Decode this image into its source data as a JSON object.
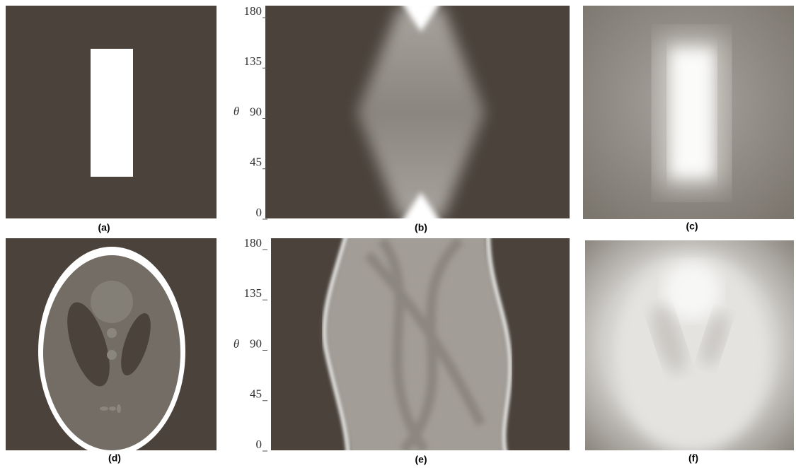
{
  "panels": [
    {
      "label": "(a)"
    },
    {
      "label": "(b)",
      "axis": {
        "label": "θ",
        "ticks": [
          180,
          135,
          90,
          45,
          0
        ]
      }
    },
    {
      "label": "(c)"
    },
    {
      "label": "(d)"
    },
    {
      "label": "(e)",
      "axis": {
        "label": "θ",
        "ticks": [
          180,
          135,
          90,
          45,
          0
        ]
      }
    },
    {
      "label": "(f)"
    }
  ]
}
